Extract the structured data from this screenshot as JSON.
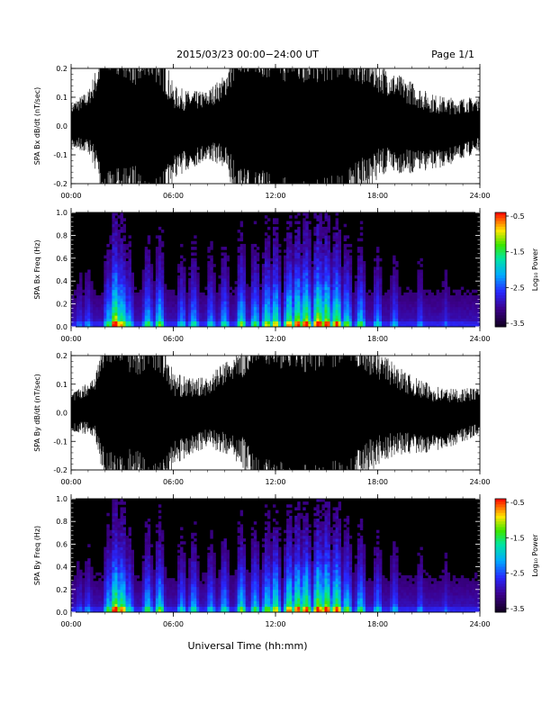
{
  "header": {
    "title": "2015/03/23  00:00−24:00 UT",
    "page": "Page 1/1"
  },
  "footer": {
    "xlabel": "Universal Time (hh:mm)"
  },
  "chart_data": [
    {
      "type": "line",
      "panel": "bx-waveform",
      "ylabel": "SPA Bx dB/dt (nT/sec)",
      "xlabel": "",
      "xlim": [
        "00:00",
        "24:00"
      ],
      "x_ticks": [
        "00:00",
        "06:00",
        "12:00",
        "18:00",
        "24:00"
      ],
      "ylim": [
        -0.2,
        0.2
      ],
      "y_ticks": [
        "-0.2",
        "-0.1",
        "0.0",
        "0.1",
        "0.2"
      ],
      "series": [
        {
          "x_hours": [
            0,
            1,
            1.5,
            2,
            2.5,
            3,
            3.5,
            4,
            4.5,
            5,
            5.5,
            6,
            7,
            8,
            9,
            10,
            11,
            12,
            13,
            14,
            15,
            16,
            17,
            18,
            19,
            20,
            21,
            22,
            23,
            24
          ],
          "envelope_amplitude": [
            0.06,
            0.08,
            0.14,
            0.25,
            0.25,
            0.25,
            0.22,
            0.2,
            0.25,
            0.25,
            0.2,
            0.12,
            0.1,
            0.09,
            0.12,
            0.25,
            0.25,
            0.25,
            0.25,
            0.25,
            0.25,
            0.25,
            0.2,
            0.15,
            0.13,
            0.12,
            0.1,
            0.09,
            0.08,
            0.07
          ]
        }
      ],
      "color": "#000000"
    },
    {
      "type": "heatmap",
      "panel": "bx-spectrogram",
      "ylabel": "SPA Bx Freq (Hz)",
      "xlim": [
        "00:00",
        "24:00"
      ],
      "x_ticks": [
        "00:00",
        "06:00",
        "12:00",
        "18:00",
        "24:00"
      ],
      "ylim": [
        0.0,
        1.0
      ],
      "y_ticks": [
        "0.0",
        "0.2",
        "0.4",
        "0.6",
        "0.8",
        "1.0"
      ],
      "colorbar": {
        "label": "Log₁₀ Power",
        "min": -3.5,
        "max": -0.5,
        "ticks": [
          "-0.5",
          "-1.5",
          "-2.5",
          "-3.5"
        ]
      },
      "activity_hours": [
        0.5,
        1.0,
        2.2,
        2.6,
        3.0,
        3.4,
        4.5,
        5.2,
        6.5,
        7.2,
        8.2,
        9.0,
        10.0,
        10.8,
        11.5,
        12.0,
        12.8,
        13.3,
        13.8,
        14.5,
        15.0,
        15.6,
        16.2,
        17.0,
        18.0,
        19.0,
        20.5,
        22.0
      ],
      "activity_strength": [
        0.3,
        0.35,
        0.55,
        0.9,
        0.7,
        0.5,
        0.55,
        0.6,
        0.45,
        0.5,
        0.45,
        0.5,
        0.6,
        0.55,
        0.65,
        0.7,
        0.75,
        0.8,
        0.85,
        0.9,
        0.85,
        0.8,
        0.6,
        0.55,
        0.45,
        0.4,
        0.35,
        0.3
      ]
    },
    {
      "type": "line",
      "panel": "by-waveform",
      "ylabel": "SPA By dB/dt (nT/sec)",
      "xlim": [
        "00:00",
        "24:00"
      ],
      "x_ticks": [
        "00:00",
        "06:00",
        "12:00",
        "18:00",
        "24:00"
      ],
      "ylim": [
        -0.2,
        0.2
      ],
      "y_ticks": [
        "-0.2",
        "-0.1",
        "0.0",
        "0.1",
        "0.2"
      ],
      "series": [
        {
          "x_hours": [
            0,
            1,
            1.5,
            2,
            2.5,
            3,
            3.5,
            4,
            4.5,
            5,
            5.5,
            6,
            7,
            8,
            9,
            10,
            11,
            12,
            13,
            14,
            15,
            16,
            17,
            18,
            19,
            20,
            21,
            22,
            23,
            24
          ],
          "envelope_amplitude": [
            0.05,
            0.07,
            0.1,
            0.22,
            0.25,
            0.25,
            0.2,
            0.2,
            0.25,
            0.25,
            0.2,
            0.12,
            0.1,
            0.09,
            0.12,
            0.15,
            0.25,
            0.25,
            0.25,
            0.25,
            0.25,
            0.25,
            0.2,
            0.15,
            0.12,
            0.1,
            0.09,
            0.08,
            0.07,
            0.06
          ]
        }
      ],
      "color": "#000000"
    },
    {
      "type": "heatmap",
      "panel": "by-spectrogram",
      "ylabel": "SPA By Freq (Hz)",
      "xlim": [
        "00:00",
        "24:00"
      ],
      "x_ticks": [
        "00:00",
        "06:00",
        "12:00",
        "18:00",
        "24:00"
      ],
      "ylim": [
        0.0,
        1.0
      ],
      "y_ticks": [
        "0.0",
        "0.2",
        "0.4",
        "0.6",
        "0.8",
        "1.0"
      ],
      "colorbar": {
        "label": "Log₁₀ Power",
        "min": -3.5,
        "max": -0.5,
        "ticks": [
          "-0.5",
          "-1.5",
          "-2.5",
          "-3.5"
        ]
      },
      "activity_hours": [
        0.5,
        1.0,
        2.2,
        2.6,
        3.0,
        3.4,
        4.5,
        5.2,
        6.5,
        7.2,
        8.2,
        9.0,
        10.0,
        10.8,
        11.5,
        12.0,
        12.8,
        13.3,
        13.8,
        14.5,
        15.0,
        15.6,
        16.2,
        17.0,
        18.0,
        19.0,
        20.5,
        22.0
      ],
      "activity_strength": [
        0.3,
        0.35,
        0.55,
        0.85,
        0.75,
        0.5,
        0.55,
        0.6,
        0.45,
        0.5,
        0.45,
        0.5,
        0.6,
        0.55,
        0.6,
        0.7,
        0.75,
        0.8,
        0.8,
        0.85,
        0.85,
        0.8,
        0.6,
        0.55,
        0.45,
        0.4,
        0.35,
        0.3
      ]
    }
  ]
}
